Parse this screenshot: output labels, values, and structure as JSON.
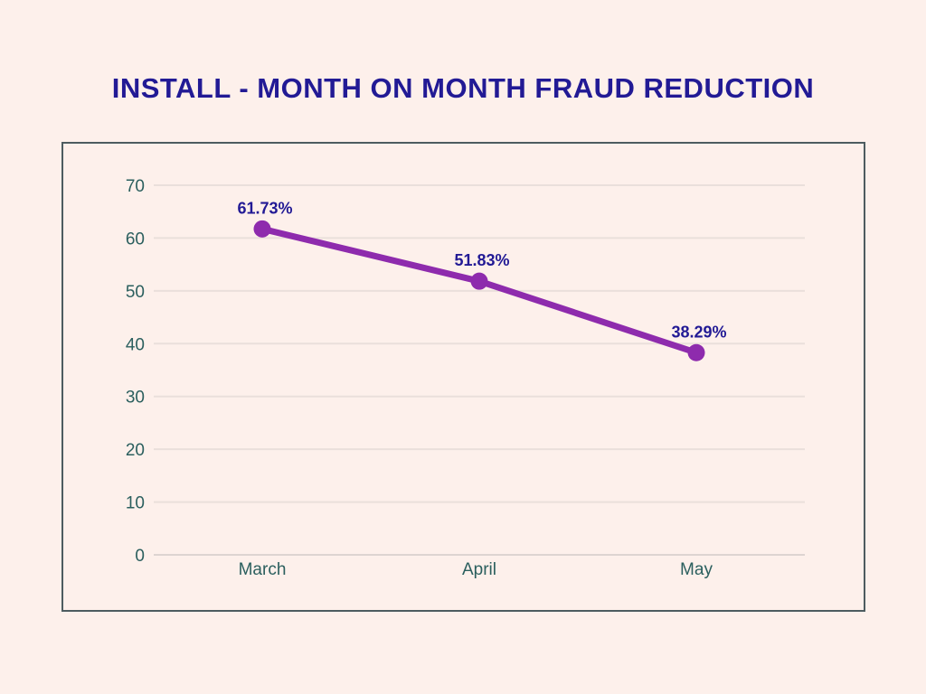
{
  "page": {
    "background": "#fdf0eb"
  },
  "chart_data": {
    "type": "line",
    "title": "INSTALL - MONTH ON MONTH FRAUD REDUCTION",
    "categories": [
      "March",
      "April",
      "May"
    ],
    "series": [
      {
        "name": "fraud-reduction-percent",
        "values": [
          61.73,
          51.83,
          38.29
        ]
      }
    ],
    "data_labels": [
      "61.73%",
      "51.83%",
      "38.29%"
    ],
    "xlabel": "",
    "ylabel": "",
    "ylim": [
      0,
      70
    ],
    "yticks": [
      0,
      10,
      20,
      30,
      40,
      50,
      60,
      70
    ],
    "grid": true,
    "legend_position": "none",
    "colors": {
      "title": "#221a95",
      "line": "#8e2bad",
      "marker": "#8e2bad",
      "data_label": "#221a95",
      "axis_label": "#2b5f5e",
      "gridline": "#eadfdb",
      "gridline_zero": "#ddd4d1",
      "frame_border": "#4d5c60",
      "background": "#fdf0eb"
    }
  }
}
